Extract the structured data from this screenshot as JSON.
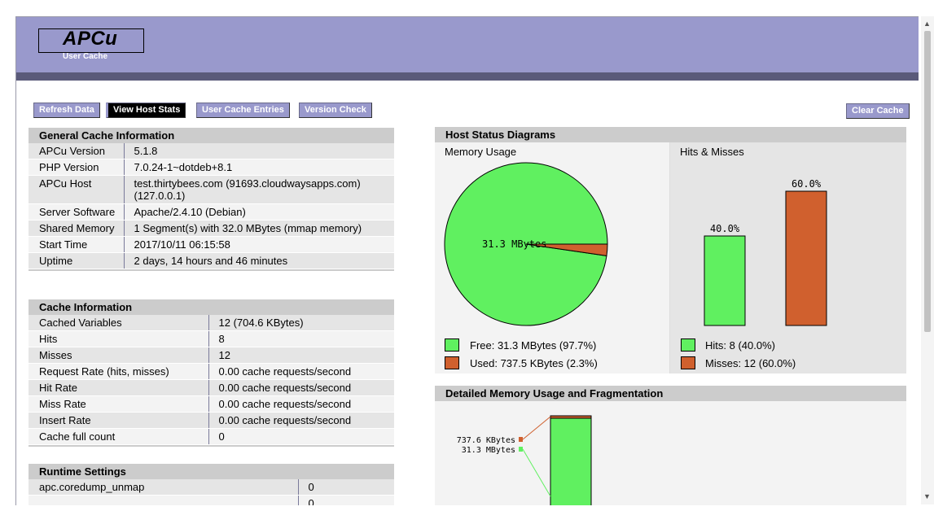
{
  "header": {
    "logo": "APCu",
    "subtitle": "User Cache"
  },
  "toolbar": {
    "refresh": "Refresh Data",
    "host_stats": "View Host Stats",
    "user_entries": "User Cache Entries",
    "version_check": "Version Check",
    "clear_cache": "Clear Cache"
  },
  "general": {
    "title": "General Cache Information",
    "rows": [
      {
        "k": "APCu Version",
        "v": "5.1.8"
      },
      {
        "k": "PHP Version",
        "v": "7.0.24-1~dotdeb+8.1"
      },
      {
        "k": "APCu Host",
        "v": "test.thirtybees.com (91693.cloudwaysapps.com) (127.0.0.1)"
      },
      {
        "k": "Server Software",
        "v": "Apache/2.4.10 (Debian)"
      },
      {
        "k": "Shared Memory",
        "v": "1 Segment(s) with 32.0 MBytes (mmap memory)"
      },
      {
        "k": "Start Time",
        "v": "2017/10/11 06:15:58"
      },
      {
        "k": "Uptime",
        "v": "2 days, 14 hours and 46 minutes"
      }
    ]
  },
  "cache": {
    "title": "Cache Information",
    "rows": [
      {
        "k": "Cached Variables",
        "v": "12 (704.6 KBytes)"
      },
      {
        "k": "Hits",
        "v": "8"
      },
      {
        "k": "Misses",
        "v": "12"
      },
      {
        "k": "Request Rate (hits, misses)",
        "v": "0.00 cache requests/second"
      },
      {
        "k": "Hit Rate",
        "v": "0.00 cache requests/second"
      },
      {
        "k": "Miss Rate",
        "v": "0.00 cache requests/second"
      },
      {
        "k": "Insert Rate",
        "v": "0.00 cache requests/second"
      },
      {
        "k": "Cache full count",
        "v": "0"
      }
    ]
  },
  "runtime": {
    "title": "Runtime Settings",
    "rows": [
      {
        "k": "apc.coredump_unmap",
        "v": "0"
      },
      {
        "k": "",
        "v": "0"
      }
    ]
  },
  "host_status": {
    "title": "Host Status Diagrams",
    "memory_label": "Memory Usage",
    "hits_label": "Hits & Misses",
    "pie_label": "31.3 MBytes",
    "free_legend": "Free: 31.3 MBytes (97.7%)",
    "used_legend": "Used: 737.5 KBytes (2.3%)",
    "hits_legend": "Hits: 8 (40.0%)",
    "misses_legend": "Misses: 12 (60.0%)",
    "colors": {
      "free": "#60f060",
      "used": "#d0602e"
    }
  },
  "detailed": {
    "title": "Detailed Memory Usage and Fragmentation",
    "label_used": "737.6 KBytes",
    "label_free": "31.3 MBytes"
  },
  "chart_data": [
    {
      "type": "pie",
      "categories": [
        "Free",
        "Used"
      ],
      "values": [
        97.7,
        2.3
      ],
      "label": "31.3 MBytes"
    },
    {
      "type": "bar",
      "categories": [
        "Hits",
        "Misses"
      ],
      "values": [
        40.0,
        60.0
      ],
      "data_labels": [
        "40.0%",
        "60.0%"
      ],
      "ylim": [
        0,
        100
      ]
    }
  ]
}
